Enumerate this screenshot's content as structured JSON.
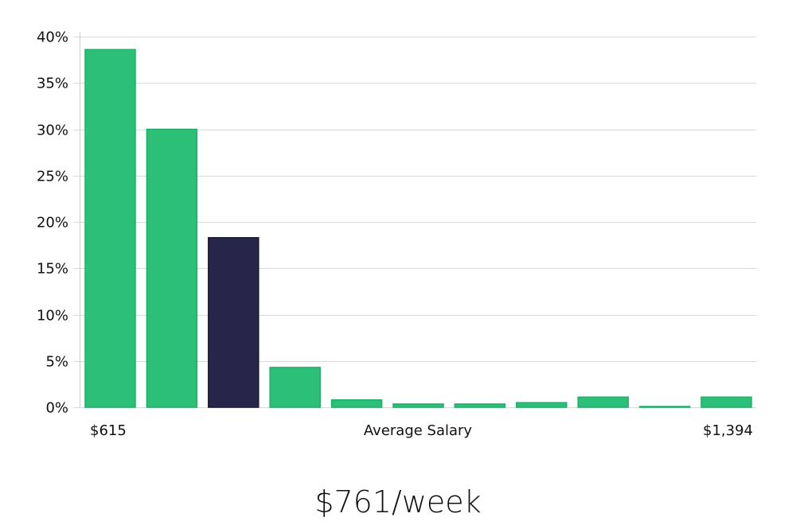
{
  "chart_data": {
    "type": "bar",
    "categories": [
      "1",
      "2",
      "3",
      "4",
      "5",
      "6",
      "7",
      "8",
      "9",
      "10",
      "11"
    ],
    "values": [
      38.6,
      30.0,
      18.3,
      4.3,
      0.8,
      0.35,
      0.35,
      0.5,
      1.1,
      0.05,
      1.1
    ],
    "highlight_index": 2,
    "ylim": [
      0,
      40
    ],
    "y_ticks": [
      0,
      5,
      10,
      15,
      20,
      25,
      30,
      35,
      40
    ],
    "y_tick_labels": [
      "0%",
      "5%",
      "10%",
      "15%",
      "20%",
      "25%",
      "30%",
      "35%",
      "40%"
    ],
    "grid": true,
    "xlabel": "Average Salary",
    "x_min_label": "$615",
    "x_max_label": "$1,394",
    "colors": {
      "bar": "#2bbf78",
      "bar_stroke": "#23ad6a",
      "highlight": "#28254a",
      "grid": "#d9d9d9"
    }
  },
  "summary": {
    "value": "$761/week"
  }
}
